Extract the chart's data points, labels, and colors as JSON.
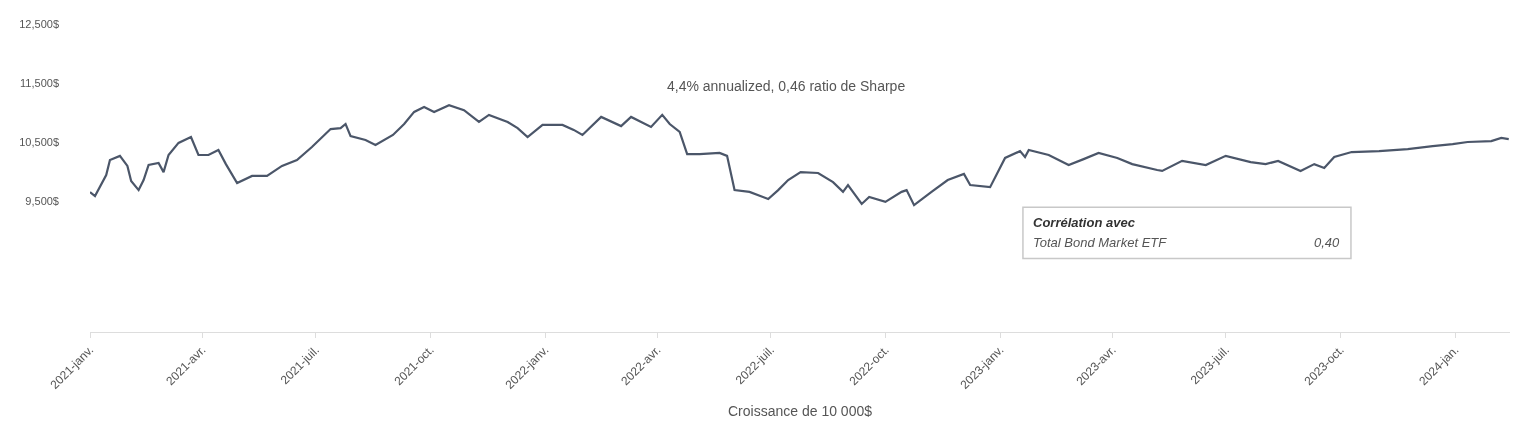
{
  "chart_data": {
    "type": "line",
    "xlabel": "Croissance de 10 000$",
    "annotations": [
      "4,4% annualized, 0,46 ratio de Sharpe",
      "Corrélation avec",
      "Total Bond Market ETF",
      "0,40"
    ],
    "x": [
      "2021-01-01",
      "2021-01-05",
      "2021-01-14",
      "2021-01-17",
      "2021-01-25",
      "2021-01-31",
      "2021-02-03",
      "2021-02-09",
      "2021-02-13",
      "2021-02-17",
      "2021-02-25",
      "2021-03-01",
      "2021-03-05",
      "2021-03-13",
      "2021-03-23",
      "2021-03-29",
      "2021-04-06",
      "2021-04-14",
      "2021-04-20",
      "2021-04-29",
      "2021-05-11",
      "2021-05-23",
      "2021-06-04",
      "2021-06-16",
      "2021-06-28",
      "2021-07-13",
      "2021-07-21",
      "2021-07-25",
      "2021-07-29",
      "2021-08-10",
      "2021-08-18",
      "2021-09-01",
      "2021-09-10",
      "2021-09-18",
      "2021-09-26",
      "2021-10-04",
      "2021-10-16",
      "2021-10-28",
      "2021-11-09",
      "2021-11-17",
      "2021-12-02",
      "2021-12-10",
      "2021-12-18",
      "2021-12-30",
      "2022-01-15",
      "2022-01-24",
      "2022-01-31",
      "2022-02-15",
      "2022-03-03",
      "2022-03-11",
      "2022-03-27",
      "2022-04-05",
      "2022-04-11",
      "2022-04-19",
      "2022-04-25",
      "2022-05-05",
      "2022-05-21",
      "2022-05-27",
      "2022-06-02",
      "2022-06-14",
      "2022-06-29",
      "2022-07-07",
      "2022-07-15",
      "2022-07-25",
      "2022-08-08",
      "2022-08-20",
      "2022-08-28",
      "2022-09-01",
      "2022-09-12",
      "2022-09-18",
      "2022-10-01",
      "2022-10-14",
      "2022-10-18",
      "2022-10-24",
      "2022-11-07",
      "2022-11-20",
      "2022-12-03",
      "2022-12-08",
      "2022-12-24",
      "2023-01-05",
      "2023-01-17",
      "2023-01-21",
      "2023-01-24",
      "2023-02-09",
      "2023-02-25",
      "2023-03-09",
      "2023-03-21",
      "2023-04-05",
      "2023-04-17",
      "2023-05-07",
      "2023-05-11",
      "2023-05-27",
      "2023-06-15",
      "2023-07-01",
      "2023-07-21",
      "2023-08-02",
      "2023-08-12",
      "2023-08-30",
      "2023-09-10",
      "2023-09-18",
      "2023-09-26",
      "2023-10-10",
      "2023-11-01",
      "2023-11-24",
      "2023-12-14",
      "2023-12-30",
      "2024-01-11",
      "2024-01-30",
      "2024-02-07",
      "2024-02-13"
    ],
    "series": [
      {
        "color": "#4b5669",
        "values": [
          9650,
          9585,
          9940,
          10195,
          10265,
          10095,
          9840,
          9685,
          9855,
          10110,
          10145,
          9990,
          10280,
          10485,
          10585,
          10280,
          10280,
          10365,
          10125,
          9805,
          9925,
          9925,
          10095,
          10195,
          10415,
          10720,
          10735,
          10805,
          10600,
          10535,
          10450,
          10620,
          10805,
          11010,
          11095,
          11010,
          11125,
          11040,
          10840,
          10960,
          10840,
          10735,
          10585,
          10790,
          10790,
          10705,
          10620,
          10925,
          10770,
          10925,
          10755,
          10960,
          10805,
          10670,
          10295,
          10295,
          10315,
          10265,
          9685,
          9655,
          9535,
          9685,
          9855,
          9990,
          9975,
          9820,
          9655,
          9770,
          9450,
          9570,
          9485,
          9655,
          9685,
          9430,
          9655,
          9855,
          9960,
          9770,
          9735,
          10230,
          10345,
          10245,
          10365,
          10280,
          10110,
          10210,
          10315,
          10230,
          10125,
          10025,
          10010,
          10180,
          10110,
          10265,
          10160,
          10125,
          10180,
          10010,
          10125,
          10060,
          10245,
          10330,
          10345,
          10380,
          10430,
          10465,
          10500,
          10515,
          10570,
          10550
        ]
      }
    ],
    "xlim": [
      "2021-01-01",
      "2024-02-14"
    ],
    "xticks": [
      {
        "value": "2021-01-01",
        "label": "2021-janv."
      },
      {
        "value": "2021-04-01",
        "label": "2021-avr."
      },
      {
        "value": "2021-07-01",
        "label": "2021-juil."
      },
      {
        "value": "2021-10-01",
        "label": "2021-oct."
      },
      {
        "value": "2022-01-01",
        "label": "2022-janv."
      },
      {
        "value": "2022-04-01",
        "label": "2022-avr."
      },
      {
        "value": "2022-07-01",
        "label": "2022-juil."
      },
      {
        "value": "2022-10-01",
        "label": "2022-oct."
      },
      {
        "value": "2023-01-01",
        "label": "2023-janv."
      },
      {
        "value": "2023-04-01",
        "label": "2023-avr."
      },
      {
        "value": "2023-07-01",
        "label": "2023-juil."
      },
      {
        "value": "2023-10-01",
        "label": "2023-oct."
      },
      {
        "value": "2024-01-01",
        "label": "2024-jan."
      }
    ],
    "ylim": [
      7280,
      12500
    ],
    "yticks": [
      {
        "value": 9500,
        "label": "9,500$"
      },
      {
        "value": 10500,
        "label": "10,500$"
      },
      {
        "value": 11500,
        "label": "11,500$"
      },
      {
        "value": 12500,
        "label": "12,500$"
      }
    ],
    "marker": "none",
    "line_style": "solid"
  }
}
